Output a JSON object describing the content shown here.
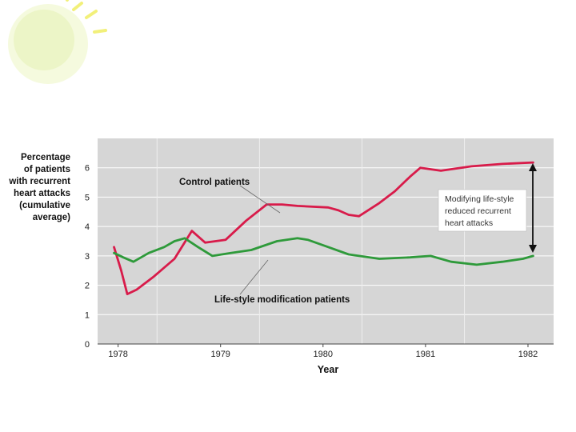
{
  "chart_data": {
    "type": "line",
    "title": "",
    "xlabel": "Year",
    "ylabel": [
      "Percentage",
      "of patients",
      "with recurrent",
      "heart attacks",
      "(cumulative",
      "average)"
    ],
    "xlim": [
      1977.8,
      1982.25
    ],
    "ylim": [
      0,
      7
    ],
    "x_ticks": [
      {
        "label": "1978",
        "value": 1978
      },
      {
        "label": "1979",
        "value": 1979
      },
      {
        "label": "1980",
        "value": 1980
      },
      {
        "label": "1981",
        "value": 1981
      },
      {
        "label": "1982",
        "value": 1982
      }
    ],
    "y_ticks": [
      {
        "label": "0",
        "value": 0
      },
      {
        "label": "1",
        "value": 1
      },
      {
        "label": "2",
        "value": 2
      },
      {
        "label": "3",
        "value": 3
      },
      {
        "label": "4",
        "value": 4
      },
      {
        "label": "5",
        "value": 5
      },
      {
        "label": "6",
        "value": 6
      }
    ],
    "vertical_grid": [
      1978.38,
      1979.38,
      1980.38,
      1981.38
    ],
    "series": [
      {
        "name": "Control patients",
        "color": "#d81b4a",
        "x": [
          1977.96,
          1978.03,
          1978.09,
          1978.18,
          1978.35,
          1978.55,
          1978.72,
          1978.85,
          1978.95,
          1979.05,
          1979.25,
          1979.45,
          1979.6,
          1979.75,
          1980.05,
          1980.15,
          1980.25,
          1980.35,
          1980.55,
          1980.7,
          1980.85,
          1980.95,
          1981.15,
          1981.45,
          1981.75,
          1982.05
        ],
        "values": [
          3.3,
          2.5,
          1.7,
          1.85,
          2.3,
          2.9,
          3.85,
          3.45,
          3.5,
          3.55,
          4.2,
          4.75,
          4.75,
          4.7,
          4.65,
          4.55,
          4.4,
          4.35,
          4.8,
          5.2,
          5.7,
          6.0,
          5.9,
          6.05,
          6.13,
          6.18
        ]
      },
      {
        "name": "Life-style modification patients",
        "color": "#2e9a3a",
        "x": [
          1977.96,
          1978.05,
          1978.15,
          1978.3,
          1978.45,
          1978.55,
          1978.65,
          1978.78,
          1978.92,
          1979.1,
          1979.3,
          1979.55,
          1979.75,
          1979.85,
          1980.05,
          1980.25,
          1980.55,
          1980.85,
          1981.05,
          1981.25,
          1981.5,
          1981.75,
          1981.95,
          1982.05
        ],
        "values": [
          3.1,
          2.95,
          2.8,
          3.1,
          3.3,
          3.5,
          3.6,
          3.3,
          3.0,
          3.1,
          3.2,
          3.5,
          3.6,
          3.55,
          3.3,
          3.05,
          2.9,
          2.95,
          3.0,
          2.8,
          2.7,
          2.8,
          2.9,
          3.0
        ]
      }
    ],
    "annotations": {
      "control_label": "Control patients",
      "lifestyle_label": "Life-style modification patients",
      "box_lines": [
        "Modifying life-style",
        "reduced recurrent",
        "heart attacks"
      ]
    }
  }
}
